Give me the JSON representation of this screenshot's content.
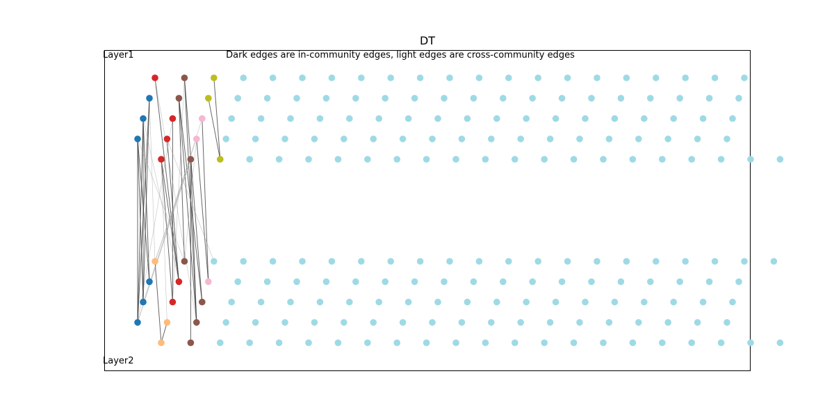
{
  "title": "DT",
  "subtitle": "Dark edges are in-community edges, light edges are cross-community edges",
  "layer_labels": {
    "top": "Layer1",
    "bottom": "Layer2"
  },
  "colors": {
    "blue": "#1f77b4",
    "red": "#d62728",
    "brown": "#8c564b",
    "olive": "#bcbd22",
    "pink": "#f7b6d2",
    "orange": "#ffbb78",
    "cyan": "#9edae5",
    "edge_dark": "#333333",
    "edge_light": "#999999"
  },
  "layers": {
    "top": {
      "rows": [
        [
          "red",
          "brown",
          "olive",
          "cyan",
          "cyan",
          "cyan",
          "cyan",
          "cyan",
          "cyan",
          "cyan",
          "cyan",
          "cyan",
          "cyan",
          "cyan",
          "cyan",
          "cyan",
          "cyan",
          "cyan",
          "cyan",
          "cyan",
          "cyan"
        ],
        [
          "blue",
          "brown",
          "olive",
          "cyan",
          "cyan",
          "cyan",
          "cyan",
          "cyan",
          "cyan",
          "cyan",
          "cyan",
          "cyan",
          "cyan",
          "cyan",
          "cyan",
          "cyan",
          "cyan",
          "cyan",
          "cyan",
          "cyan",
          "cyan"
        ],
        [
          "blue",
          "red",
          "pink",
          "cyan",
          "cyan",
          "cyan",
          "cyan",
          "cyan",
          "cyan",
          "cyan",
          "cyan",
          "cyan",
          "cyan",
          "cyan",
          "cyan",
          "cyan",
          "cyan",
          "cyan",
          "cyan",
          "cyan",
          "cyan"
        ],
        [
          "blue",
          "red",
          "pink",
          "cyan",
          "cyan",
          "cyan",
          "cyan",
          "cyan",
          "cyan",
          "cyan",
          "cyan",
          "cyan",
          "cyan",
          "cyan",
          "cyan",
          "cyan",
          "cyan",
          "cyan",
          "cyan",
          "cyan",
          "cyan"
        ],
        [
          "red",
          "brown",
          "olive",
          "cyan",
          "cyan",
          "cyan",
          "cyan",
          "cyan",
          "cyan",
          "cyan",
          "cyan",
          "cyan",
          "cyan",
          "cyan",
          "cyan",
          "cyan",
          "cyan",
          "cyan",
          "cyan",
          "cyan",
          "cyan",
          "cyan"
        ]
      ]
    },
    "bottom": {
      "rows": [
        [
          "orange",
          "brown",
          "cyan",
          "cyan",
          "cyan",
          "cyan",
          "cyan",
          "cyan",
          "cyan",
          "cyan",
          "cyan",
          "cyan",
          "cyan",
          "cyan",
          "cyan",
          "cyan",
          "cyan",
          "cyan",
          "cyan",
          "cyan",
          "cyan",
          "cyan"
        ],
        [
          "blue",
          "red",
          "pink",
          "cyan",
          "cyan",
          "cyan",
          "cyan",
          "cyan",
          "cyan",
          "cyan",
          "cyan",
          "cyan",
          "cyan",
          "cyan",
          "cyan",
          "cyan",
          "cyan",
          "cyan",
          "cyan",
          "cyan",
          "cyan"
        ],
        [
          "blue",
          "red",
          "brown",
          "cyan",
          "cyan",
          "cyan",
          "cyan",
          "cyan",
          "cyan",
          "cyan",
          "cyan",
          "cyan",
          "cyan",
          "cyan",
          "cyan",
          "cyan",
          "cyan",
          "cyan",
          "cyan",
          "cyan",
          "cyan"
        ],
        [
          "blue",
          "orange",
          "brown",
          "cyan",
          "cyan",
          "cyan",
          "cyan",
          "cyan",
          "cyan",
          "cyan",
          "cyan",
          "cyan",
          "cyan",
          "cyan",
          "cyan",
          "cyan",
          "cyan",
          "cyan",
          "cyan",
          "cyan",
          "cyan"
        ],
        [
          "orange",
          "brown",
          "cyan",
          "cyan",
          "cyan",
          "cyan",
          "cyan",
          "cyan",
          "cyan",
          "cyan",
          "cyan",
          "cyan",
          "cyan",
          "cyan",
          "cyan",
          "cyan",
          "cyan",
          "cyan",
          "cyan",
          "cyan",
          "cyan",
          "cyan"
        ]
      ]
    }
  },
  "edges": [
    {
      "from": [
        "top",
        3,
        0
      ],
      "to": [
        "bottom",
        3,
        0
      ],
      "kind": "dark"
    },
    {
      "from": [
        "top",
        3,
        0
      ],
      "to": [
        "bottom",
        2,
        0
      ],
      "kind": "dark"
    },
    {
      "from": [
        "top",
        2,
        0
      ],
      "to": [
        "bottom",
        3,
        0
      ],
      "kind": "dark"
    },
    {
      "from": [
        "top",
        2,
        0
      ],
      "to": [
        "bottom",
        1,
        0
      ],
      "kind": "dark"
    },
    {
      "from": [
        "top",
        1,
        0
      ],
      "to": [
        "bottom",
        3,
        0
      ],
      "kind": "dark"
    },
    {
      "from": [
        "top",
        1,
        0
      ],
      "to": [
        "bottom",
        2,
        0
      ],
      "kind": "dark"
    },
    {
      "from": [
        "top",
        3,
        0
      ],
      "to": [
        "bottom",
        1,
        0
      ],
      "kind": "dark"
    },
    {
      "from": [
        "top",
        2,
        0
      ],
      "to": [
        "bottom",
        2,
        0
      ],
      "kind": "dark"
    },
    {
      "from": [
        "top",
        0,
        0
      ],
      "to": [
        "bottom",
        1,
        1
      ],
      "kind": "dark"
    },
    {
      "from": [
        "top",
        2,
        1
      ],
      "to": [
        "bottom",
        2,
        1
      ],
      "kind": "dark"
    },
    {
      "from": [
        "top",
        3,
        1
      ],
      "to": [
        "bottom",
        1,
        1
      ],
      "kind": "dark"
    },
    {
      "from": [
        "top",
        4,
        0
      ],
      "to": [
        "bottom",
        2,
        1
      ],
      "kind": "dark"
    },
    {
      "from": [
        "top",
        4,
        0
      ],
      "to": [
        "bottom",
        1,
        1
      ],
      "kind": "dark"
    },
    {
      "from": [
        "top",
        0,
        1
      ],
      "to": [
        "bottom",
        2,
        2
      ],
      "kind": "dark"
    },
    {
      "from": [
        "top",
        0,
        1
      ],
      "to": [
        "bottom",
        3,
        2
      ],
      "kind": "dark"
    },
    {
      "from": [
        "top",
        1,
        1
      ],
      "to": [
        "bottom",
        2,
        2
      ],
      "kind": "dark"
    },
    {
      "from": [
        "top",
        1,
        1
      ],
      "to": [
        "bottom",
        3,
        2
      ],
      "kind": "dark"
    },
    {
      "from": [
        "top",
        1,
        1
      ],
      "to": [
        "bottom",
        0,
        1
      ],
      "kind": "dark"
    },
    {
      "from": [
        "top",
        4,
        1
      ],
      "to": [
        "bottom",
        3,
        2
      ],
      "kind": "dark"
    },
    {
      "from": [
        "top",
        4,
        1
      ],
      "to": [
        "bottom",
        4,
        1
      ],
      "kind": "dark"
    },
    {
      "from": [
        "top",
        0,
        2
      ],
      "to": [
        "top",
        4,
        2
      ],
      "kind": "dark"
    },
    {
      "from": [
        "top",
        1,
        2
      ],
      "to": [
        "top",
        4,
        2
      ],
      "kind": "dark"
    },
    {
      "from": [
        "top",
        2,
        2
      ],
      "to": [
        "bottom",
        1,
        2
      ],
      "kind": "dark"
    },
    {
      "from": [
        "top",
        3,
        2
      ],
      "to": [
        "bottom",
        1,
        2
      ],
      "kind": "dark"
    },
    {
      "from": [
        "bottom",
        0,
        0
      ],
      "to": [
        "bottom",
        4,
        0
      ],
      "kind": "dark"
    },
    {
      "from": [
        "bottom",
        3,
        1
      ],
      "to": [
        "bottom",
        4,
        0
      ],
      "kind": "dark"
    },
    {
      "from": [
        "top",
        3,
        0
      ],
      "to": [
        "bottom",
        0,
        1
      ],
      "kind": "light"
    },
    {
      "from": [
        "top",
        2,
        0
      ],
      "to": [
        "bottom",
        1,
        1
      ],
      "kind": "light"
    },
    {
      "from": [
        "top",
        1,
        0
      ],
      "to": [
        "bottom",
        0,
        0
      ],
      "kind": "light"
    },
    {
      "from": [
        "top",
        2,
        1
      ],
      "to": [
        "bottom",
        3,
        0
      ],
      "kind": "light"
    },
    {
      "from": [
        "top",
        3,
        1
      ],
      "to": [
        "bottom",
        0,
        2
      ],
      "kind": "light"
    },
    {
      "from": [
        "top",
        4,
        0
      ],
      "to": [
        "bottom",
        3,
        1
      ],
      "kind": "light"
    },
    {
      "from": [
        "top",
        4,
        1
      ],
      "to": [
        "bottom",
        0,
        0
      ],
      "kind": "light"
    },
    {
      "from": [
        "top",
        0,
        1
      ],
      "to": [
        "bottom",
        2,
        1
      ],
      "kind": "light"
    },
    {
      "from": [
        "top",
        3,
        2
      ],
      "to": [
        "bottom",
        0,
        1
      ],
      "kind": "light"
    },
    {
      "from": [
        "top",
        2,
        2
      ],
      "to": [
        "bottom",
        3,
        0
      ],
      "kind": "light"
    },
    {
      "from": [
        "top",
        0,
        0
      ],
      "to": [
        "bottom",
        3,
        2
      ],
      "kind": "light"
    },
    {
      "from": [
        "top",
        4,
        1
      ],
      "to": [
        "bottom",
        3,
        0
      ],
      "kind": "light"
    },
    {
      "from": [
        "bottom",
        0,
        0
      ],
      "to": [
        "top",
        3,
        2
      ],
      "kind": "light"
    },
    {
      "from": [
        "bottom",
        2,
        0
      ],
      "to": [
        "top",
        4,
        1
      ],
      "kind": "light"
    }
  ]
}
